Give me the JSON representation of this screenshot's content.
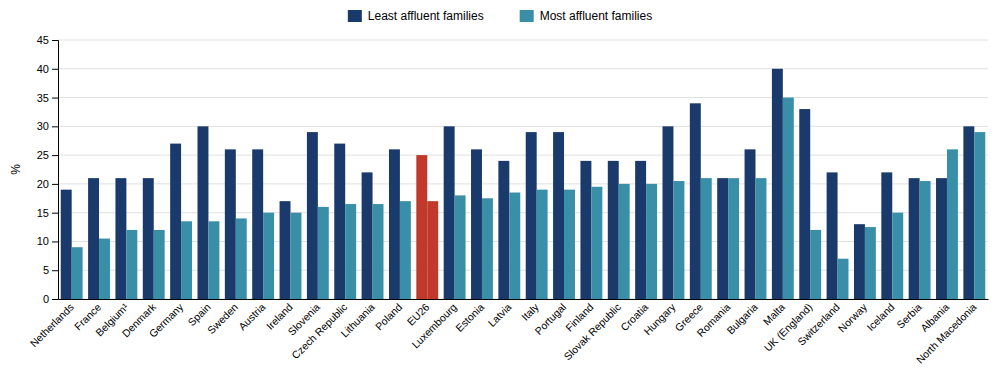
{
  "chart_data": {
    "type": "bar",
    "categories": [
      "Netherlands",
      "France",
      "Belgium¹",
      "Denmark",
      "Germany",
      "Spain",
      "Sweden",
      "Austria",
      "Ireland",
      "Slovenia",
      "Czech Republic",
      "Lithuania",
      "Poland",
      "EU26",
      "Luxembourg",
      "Estonia",
      "Latvia",
      "Italy",
      "Portugal",
      "Finland",
      "Slovak Republic",
      "Croatia",
      "Hungary",
      "Greece",
      "Romania",
      "Bulgaria",
      "Malta",
      "UK (England)",
      "Switzerland",
      "Norway",
      "Iceland",
      "Serbia",
      "Albania",
      "North Macedonia"
    ],
    "series": [
      {
        "name": "Least affluent families",
        "color": "#1a3a6b",
        "colors": [
          "#1a3a6b",
          "#1a3a6b",
          "#1a3a6b",
          "#1a3a6b",
          "#1a3a6b",
          "#1a3a6b",
          "#1a3a6b",
          "#1a3a6b",
          "#1a3a6b",
          "#1a3a6b",
          "#1a3a6b",
          "#1a3a6b",
          "#1a3a6b",
          "#c0392b",
          "#1a3a6b",
          "#1a3a6b",
          "#1a3a6b",
          "#1a3a6b",
          "#1a3a6b",
          "#1a3a6b",
          "#1a3a6b",
          "#1a3a6b",
          "#1a3a6b",
          "#1a3a6b",
          "#1a3a6b",
          "#1a3a6b",
          "#1a3a6b",
          "#1a3a6b",
          "#1a3a6b",
          "#1a3a6b",
          "#1a3a6b",
          "#1a3a6b",
          "#1a3a6b",
          "#1a3a6b"
        ],
        "values": [
          19,
          21,
          21,
          21,
          27,
          30,
          26,
          26,
          17,
          29,
          27,
          22,
          26,
          25,
          30,
          26,
          24,
          29,
          29,
          24,
          24,
          24,
          30,
          34,
          21,
          26,
          40,
          33,
          22,
          13,
          22,
          21,
          21,
          30
        ]
      },
      {
        "name": "Most affluent families",
        "color": "#3a8fa8",
        "colors": [
          "#3a8fa8",
          "#3a8fa8",
          "#3a8fa8",
          "#3a8fa8",
          "#3a8fa8",
          "#3a8fa8",
          "#3a8fa8",
          "#3a8fa8",
          "#3a8fa8",
          "#3a8fa8",
          "#3a8fa8",
          "#3a8fa8",
          "#3a8fa8",
          "#c0392b",
          "#3a8fa8",
          "#3a8fa8",
          "#3a8fa8",
          "#3a8fa8",
          "#3a8fa8",
          "#3a8fa8",
          "#3a8fa8",
          "#3a8fa8",
          "#3a8fa8",
          "#3a8fa8",
          "#3a8fa8",
          "#3a8fa8",
          "#3a8fa8",
          "#3a8fa8",
          "#3a8fa8",
          "#3a8fa8",
          "#3a8fa8",
          "#3a8fa8",
          "#3a8fa8",
          "#3a8fa8"
        ],
        "values": [
          9,
          10.5,
          12,
          12,
          13.5,
          13.5,
          14,
          15,
          15,
          16,
          16.5,
          16.5,
          17,
          17,
          18,
          17.5,
          18.5,
          19,
          19,
          19.5,
          20,
          20,
          20.5,
          21,
          21,
          21,
          35,
          12,
          7,
          12.5,
          15,
          20.5,
          26,
          29
        ]
      }
    ],
    "ylabel": "%",
    "ylim": [
      0,
      45
    ],
    "yticks": [
      0,
      5,
      10,
      15,
      20,
      25,
      30,
      35,
      40,
      45
    ],
    "grid": true,
    "legend": "top"
  }
}
